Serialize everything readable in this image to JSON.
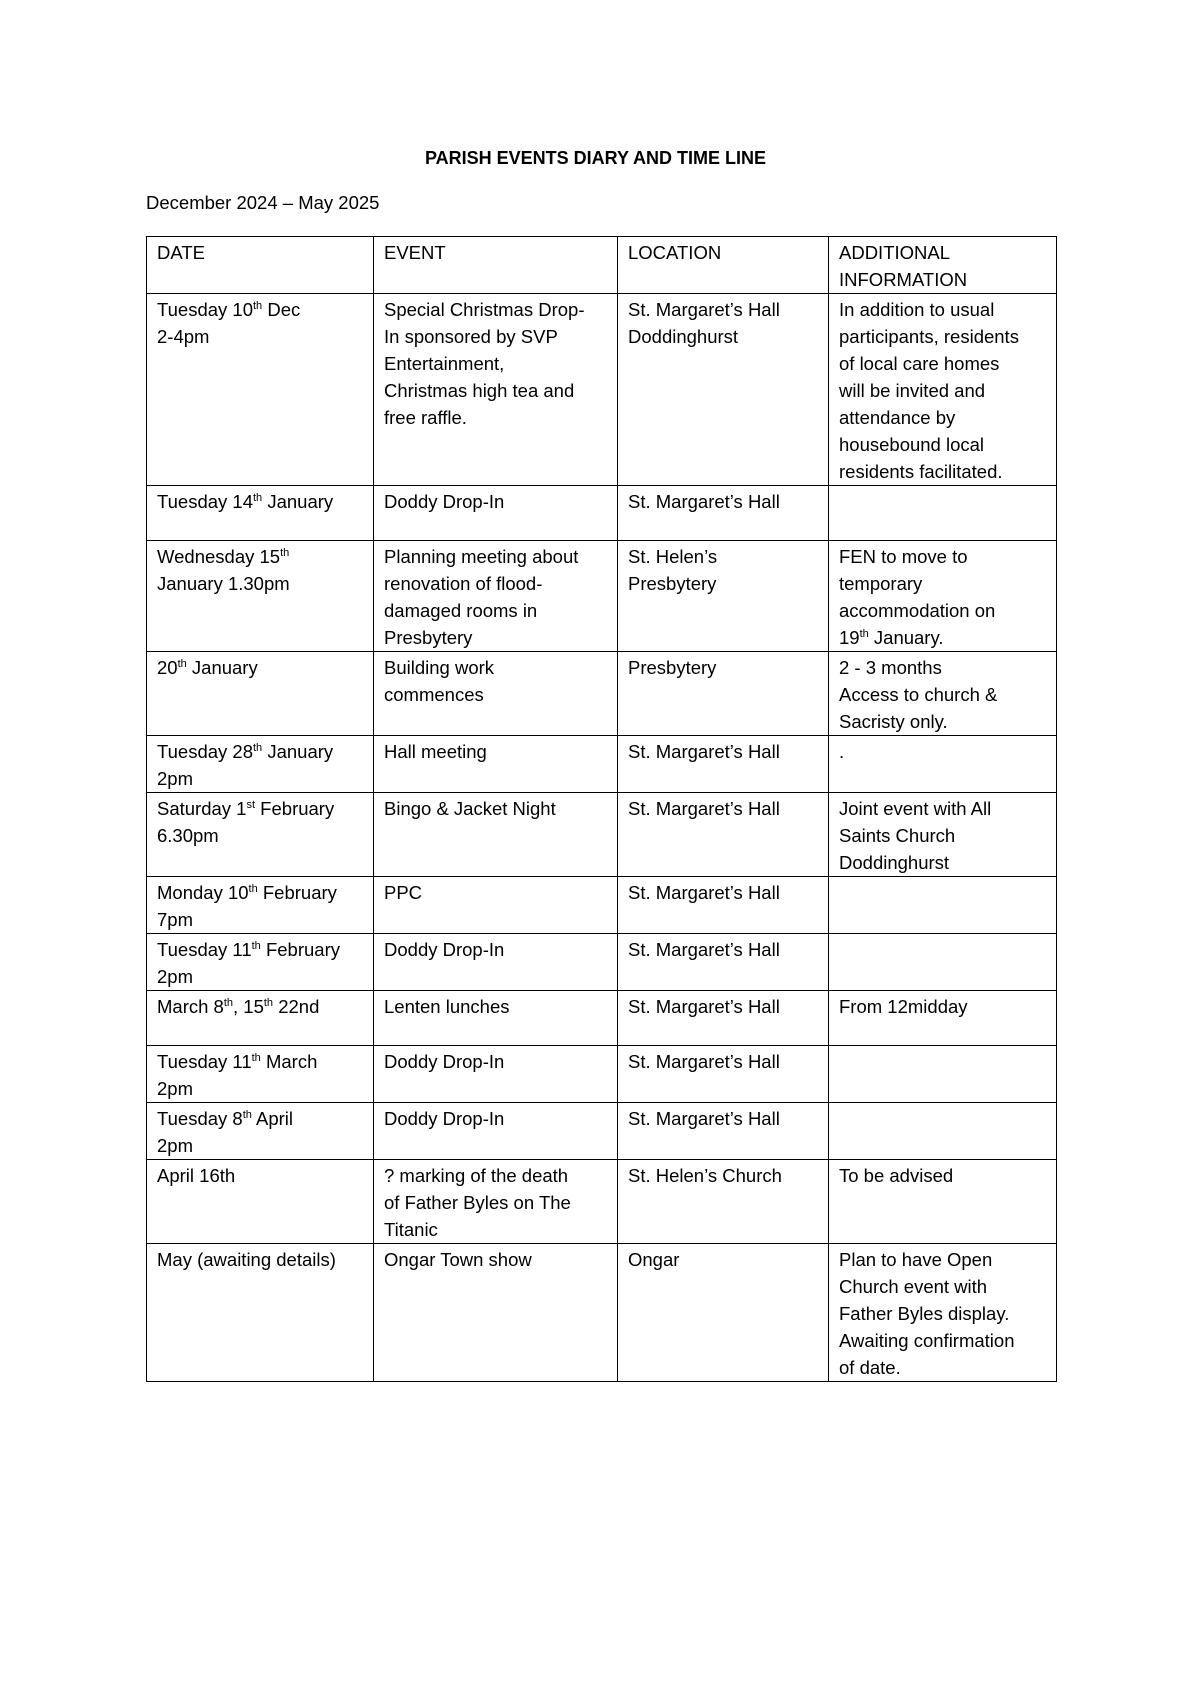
{
  "title": "PARISH EVENTS DIARY AND TIME LINE",
  "subtitle": "December 2024 – May 2025",
  "headers": [
    [
      [
        {
          "t": "DATE"
        }
      ]
    ],
    [
      [
        {
          "t": "EVENT"
        }
      ]
    ],
    [
      [
        {
          "t": "LOCATION"
        }
      ]
    ],
    [
      [
        {
          "t": "ADDITIONAL"
        }
      ],
      [
        {
          "t": "INFORMATION"
        }
      ]
    ]
  ],
  "rows": [
    {
      "cells": [
        [
          [
            {
              "t": "Tuesday 10"
            },
            {
              "s": "th"
            },
            {
              "t": " Dec"
            }
          ],
          [
            {
              "t": "2-4pm"
            }
          ]
        ],
        [
          [
            {
              "t": "Special Christmas Drop-"
            }
          ],
          [
            {
              "t": "In sponsored by SVP"
            }
          ],
          [
            {
              "t": "Entertainment,"
            }
          ],
          [
            {
              "t": "Christmas high tea and"
            }
          ],
          [
            {
              "t": "free raffle."
            }
          ]
        ],
        [
          [
            {
              "t": "St. Margaret’s Hall"
            }
          ],
          [
            {
              "t": "Doddinghurst"
            }
          ]
        ],
        [
          [
            {
              "t": "In addition to usual"
            }
          ],
          [
            {
              "t": "participants, residents"
            }
          ],
          [
            {
              "t": "of local care homes"
            }
          ],
          [
            {
              "t": "will be invited and"
            }
          ],
          [
            {
              "t": "attendance by"
            }
          ],
          [
            {
              "t": "housebound local"
            }
          ],
          [
            {
              "t": "residents facilitated."
            }
          ]
        ]
      ]
    },
    {
      "cells": [
        [
          [
            {
              "t": "Tuesday 14"
            },
            {
              "s": "th"
            },
            {
              "t": " January"
            }
          ]
        ],
        [
          [
            {
              "t": "Doddy Drop-In"
            }
          ]
        ],
        [
          [
            {
              "t": "St. Margaret’s Hall"
            }
          ]
        ],
        []
      ]
    },
    {
      "cells": [
        [
          [
            {
              "t": "Wednesday 15"
            },
            {
              "s": "th"
            }
          ],
          [
            {
              "t": "January 1.30pm"
            }
          ]
        ],
        [
          [
            {
              "t": "Planning meeting about"
            }
          ],
          [
            {
              "t": "renovation of flood-"
            }
          ],
          [
            {
              "t": "damaged rooms in"
            }
          ],
          [
            {
              "t": "Presbytery"
            }
          ]
        ],
        [
          [
            {
              "t": "St. Helen’s"
            }
          ],
          [
            {
              "t": "Presbytery"
            }
          ]
        ],
        [
          [
            {
              "t": "FEN to move to"
            }
          ],
          [
            {
              "t": "temporary"
            }
          ],
          [
            {
              "t": "accommodation on"
            }
          ],
          [
            {
              "t": "19"
            },
            {
              "s": "th"
            },
            {
              "t": " January."
            }
          ]
        ]
      ]
    },
    {
      "cells": [
        [
          [
            {
              "t": "20"
            },
            {
              "s": "th"
            },
            {
              "t": " January"
            }
          ]
        ],
        [
          [
            {
              "t": "Building work"
            }
          ],
          [
            {
              "t": "commences"
            }
          ]
        ],
        [
          [
            {
              "t": "Presbytery"
            }
          ]
        ],
        [
          [
            {
              "t": "2 - 3 months"
            }
          ],
          [
            {
              "t": "Access to church &"
            }
          ],
          [
            {
              "t": "Sacristy only."
            }
          ]
        ]
      ]
    },
    {
      "cells": [
        [
          [
            {
              "t": "Tuesday 28"
            },
            {
              "s": "th"
            },
            {
              "t": " January"
            }
          ],
          [
            {
              "t": "2pm"
            }
          ]
        ],
        [
          [
            {
              "t": "Hall meeting"
            }
          ]
        ],
        [
          [
            {
              "t": "St. Margaret’s Hall"
            }
          ]
        ],
        [
          [
            {
              "t": "."
            }
          ]
        ]
      ]
    },
    {
      "cells": [
        [
          [
            {
              "t": "Saturday 1"
            },
            {
              "s": "st"
            },
            {
              "t": " February"
            }
          ],
          [
            {
              "t": "6.30pm"
            }
          ]
        ],
        [
          [
            {
              "t": "Bingo & Jacket Night"
            }
          ]
        ],
        [
          [
            {
              "t": "St. Margaret’s Hall"
            }
          ]
        ],
        [
          [
            {
              "t": "Joint event with All"
            }
          ],
          [
            {
              "t": "Saints Church"
            }
          ],
          [
            {
              "t": "Doddinghurst"
            }
          ]
        ]
      ]
    },
    {
      "cells": [
        [
          [
            {
              "t": "Monday 10"
            },
            {
              "s": "th"
            },
            {
              "t": " February"
            }
          ],
          [
            {
              "t": "7pm"
            }
          ]
        ],
        [
          [
            {
              "t": "PPC"
            }
          ]
        ],
        [
          [
            {
              "t": "St. Margaret’s Hall"
            }
          ]
        ],
        []
      ]
    },
    {
      "cells": [
        [
          [
            {
              "t": "Tuesday 11"
            },
            {
              "s": "th"
            },
            {
              "t": " February"
            }
          ],
          [
            {
              "t": "2pm"
            }
          ]
        ],
        [
          [
            {
              "t": "Doddy Drop-In"
            }
          ]
        ],
        [
          [
            {
              "t": "St. Margaret’s Hall"
            }
          ]
        ],
        []
      ]
    },
    {
      "cells": [
        [
          [
            {
              "t": "March 8"
            },
            {
              "s": "th"
            },
            {
              "t": ", 15"
            },
            {
              "s": "th"
            },
            {
              "t": " 22nd"
            }
          ]
        ],
        [
          [
            {
              "t": "Lenten lunches"
            }
          ]
        ],
        [
          [
            {
              "t": "St. Margaret’s Hall"
            }
          ]
        ],
        [
          [
            {
              "t": "From 12midday"
            }
          ]
        ]
      ]
    },
    {
      "cells": [
        [
          [
            {
              "t": "Tuesday 11"
            },
            {
              "s": "th"
            },
            {
              "t": " March"
            }
          ],
          [
            {
              "t": "2pm"
            }
          ]
        ],
        [
          [
            {
              "t": "Doddy Drop-In"
            }
          ]
        ],
        [
          [
            {
              "t": "St. Margaret’s Hall"
            }
          ]
        ],
        []
      ]
    },
    {
      "cells": [
        [
          [
            {
              "t": "Tuesday 8"
            },
            {
              "s": "th"
            },
            {
              "t": " April"
            }
          ],
          [
            {
              "t": "2pm"
            }
          ]
        ],
        [
          [
            {
              "t": "Doddy Drop-In"
            }
          ]
        ],
        [
          [
            {
              "t": "St. Margaret’s Hall"
            }
          ]
        ],
        []
      ]
    },
    {
      "cells": [
        [
          [
            {
              "t": "April 16th"
            }
          ]
        ],
        [
          [
            {
              "t": "? marking of the death"
            }
          ],
          [
            {
              "t": "of Father Byles on The"
            }
          ],
          [
            {
              "t": "Titanic"
            }
          ]
        ],
        [
          [
            {
              "t": "St. Helen’s Church"
            }
          ]
        ],
        [
          [
            {
              "t": "To be advised"
            }
          ]
        ]
      ]
    },
    {
      "cells": [
        [
          [
            {
              "t": "May (awaiting details)"
            }
          ]
        ],
        [
          [
            {
              "t": "Ongar Town show"
            }
          ]
        ],
        [
          [
            {
              "t": "Ongar"
            }
          ]
        ],
        [
          [
            {
              "t": "Plan to have Open"
            }
          ],
          [
            {
              "t": "Church event with"
            }
          ],
          [
            {
              "t": "Father Byles display."
            }
          ],
          [
            {
              "t": "Awaiting confirmation"
            }
          ],
          [
            {
              "t": "of date."
            }
          ]
        ]
      ]
    }
  ]
}
